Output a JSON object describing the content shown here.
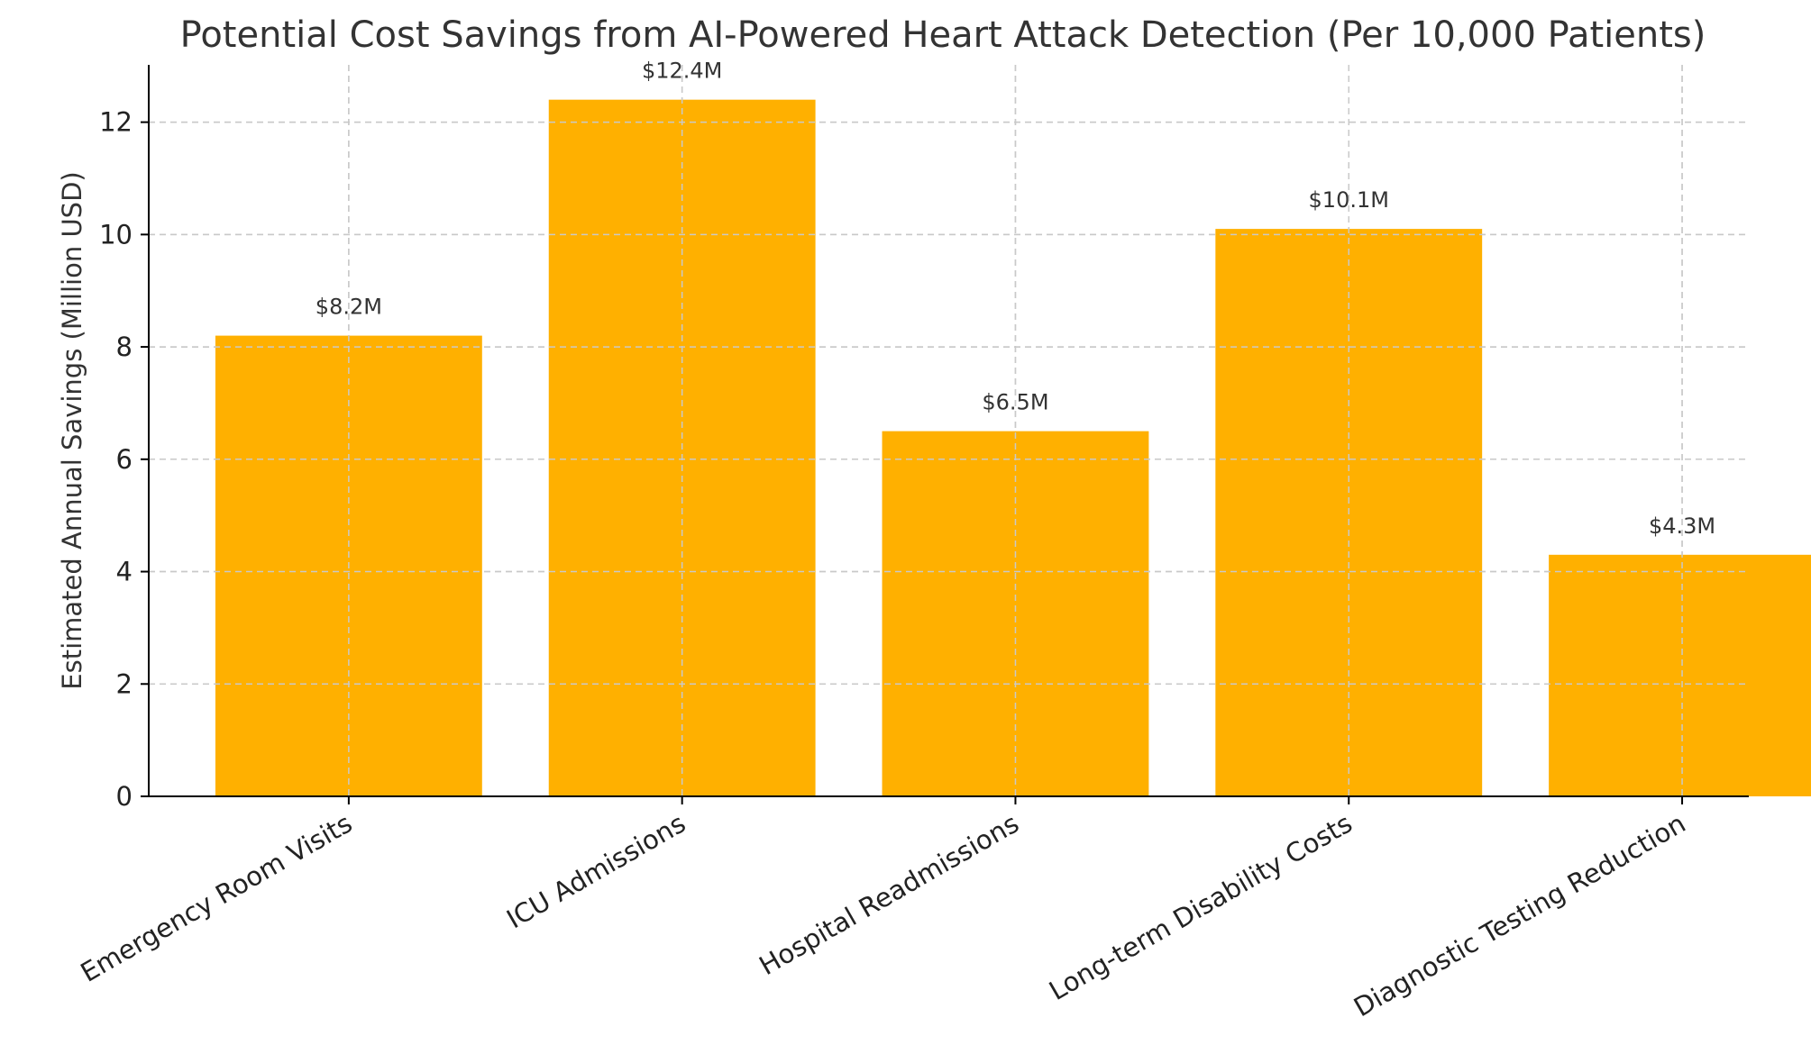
{
  "chart_data": {
    "type": "bar",
    "title": "Potential Cost Savings from AI-Powered Heart Attack Detection (Per 10,000 Patients)",
    "xlabel": "",
    "ylabel": "Estimated Annual Savings (Million USD)",
    "categories": [
      "Emergency Room Visits",
      "ICU Admissions",
      "Hospital Readmissions",
      "Long-term Disability Costs",
      "Diagnostic Testing Reduction"
    ],
    "values": [
      8.2,
      12.4,
      6.5,
      10.1,
      4.3
    ],
    "data_labels": [
      "$8.2M",
      "$12.4M",
      "$6.5M",
      "$10.1M",
      "$4.3M"
    ],
    "ylim": [
      0,
      13.02
    ],
    "yticks": [
      0,
      2,
      4,
      6,
      8,
      10,
      12
    ],
    "grid": true,
    "bar_color": "#FFB000"
  }
}
